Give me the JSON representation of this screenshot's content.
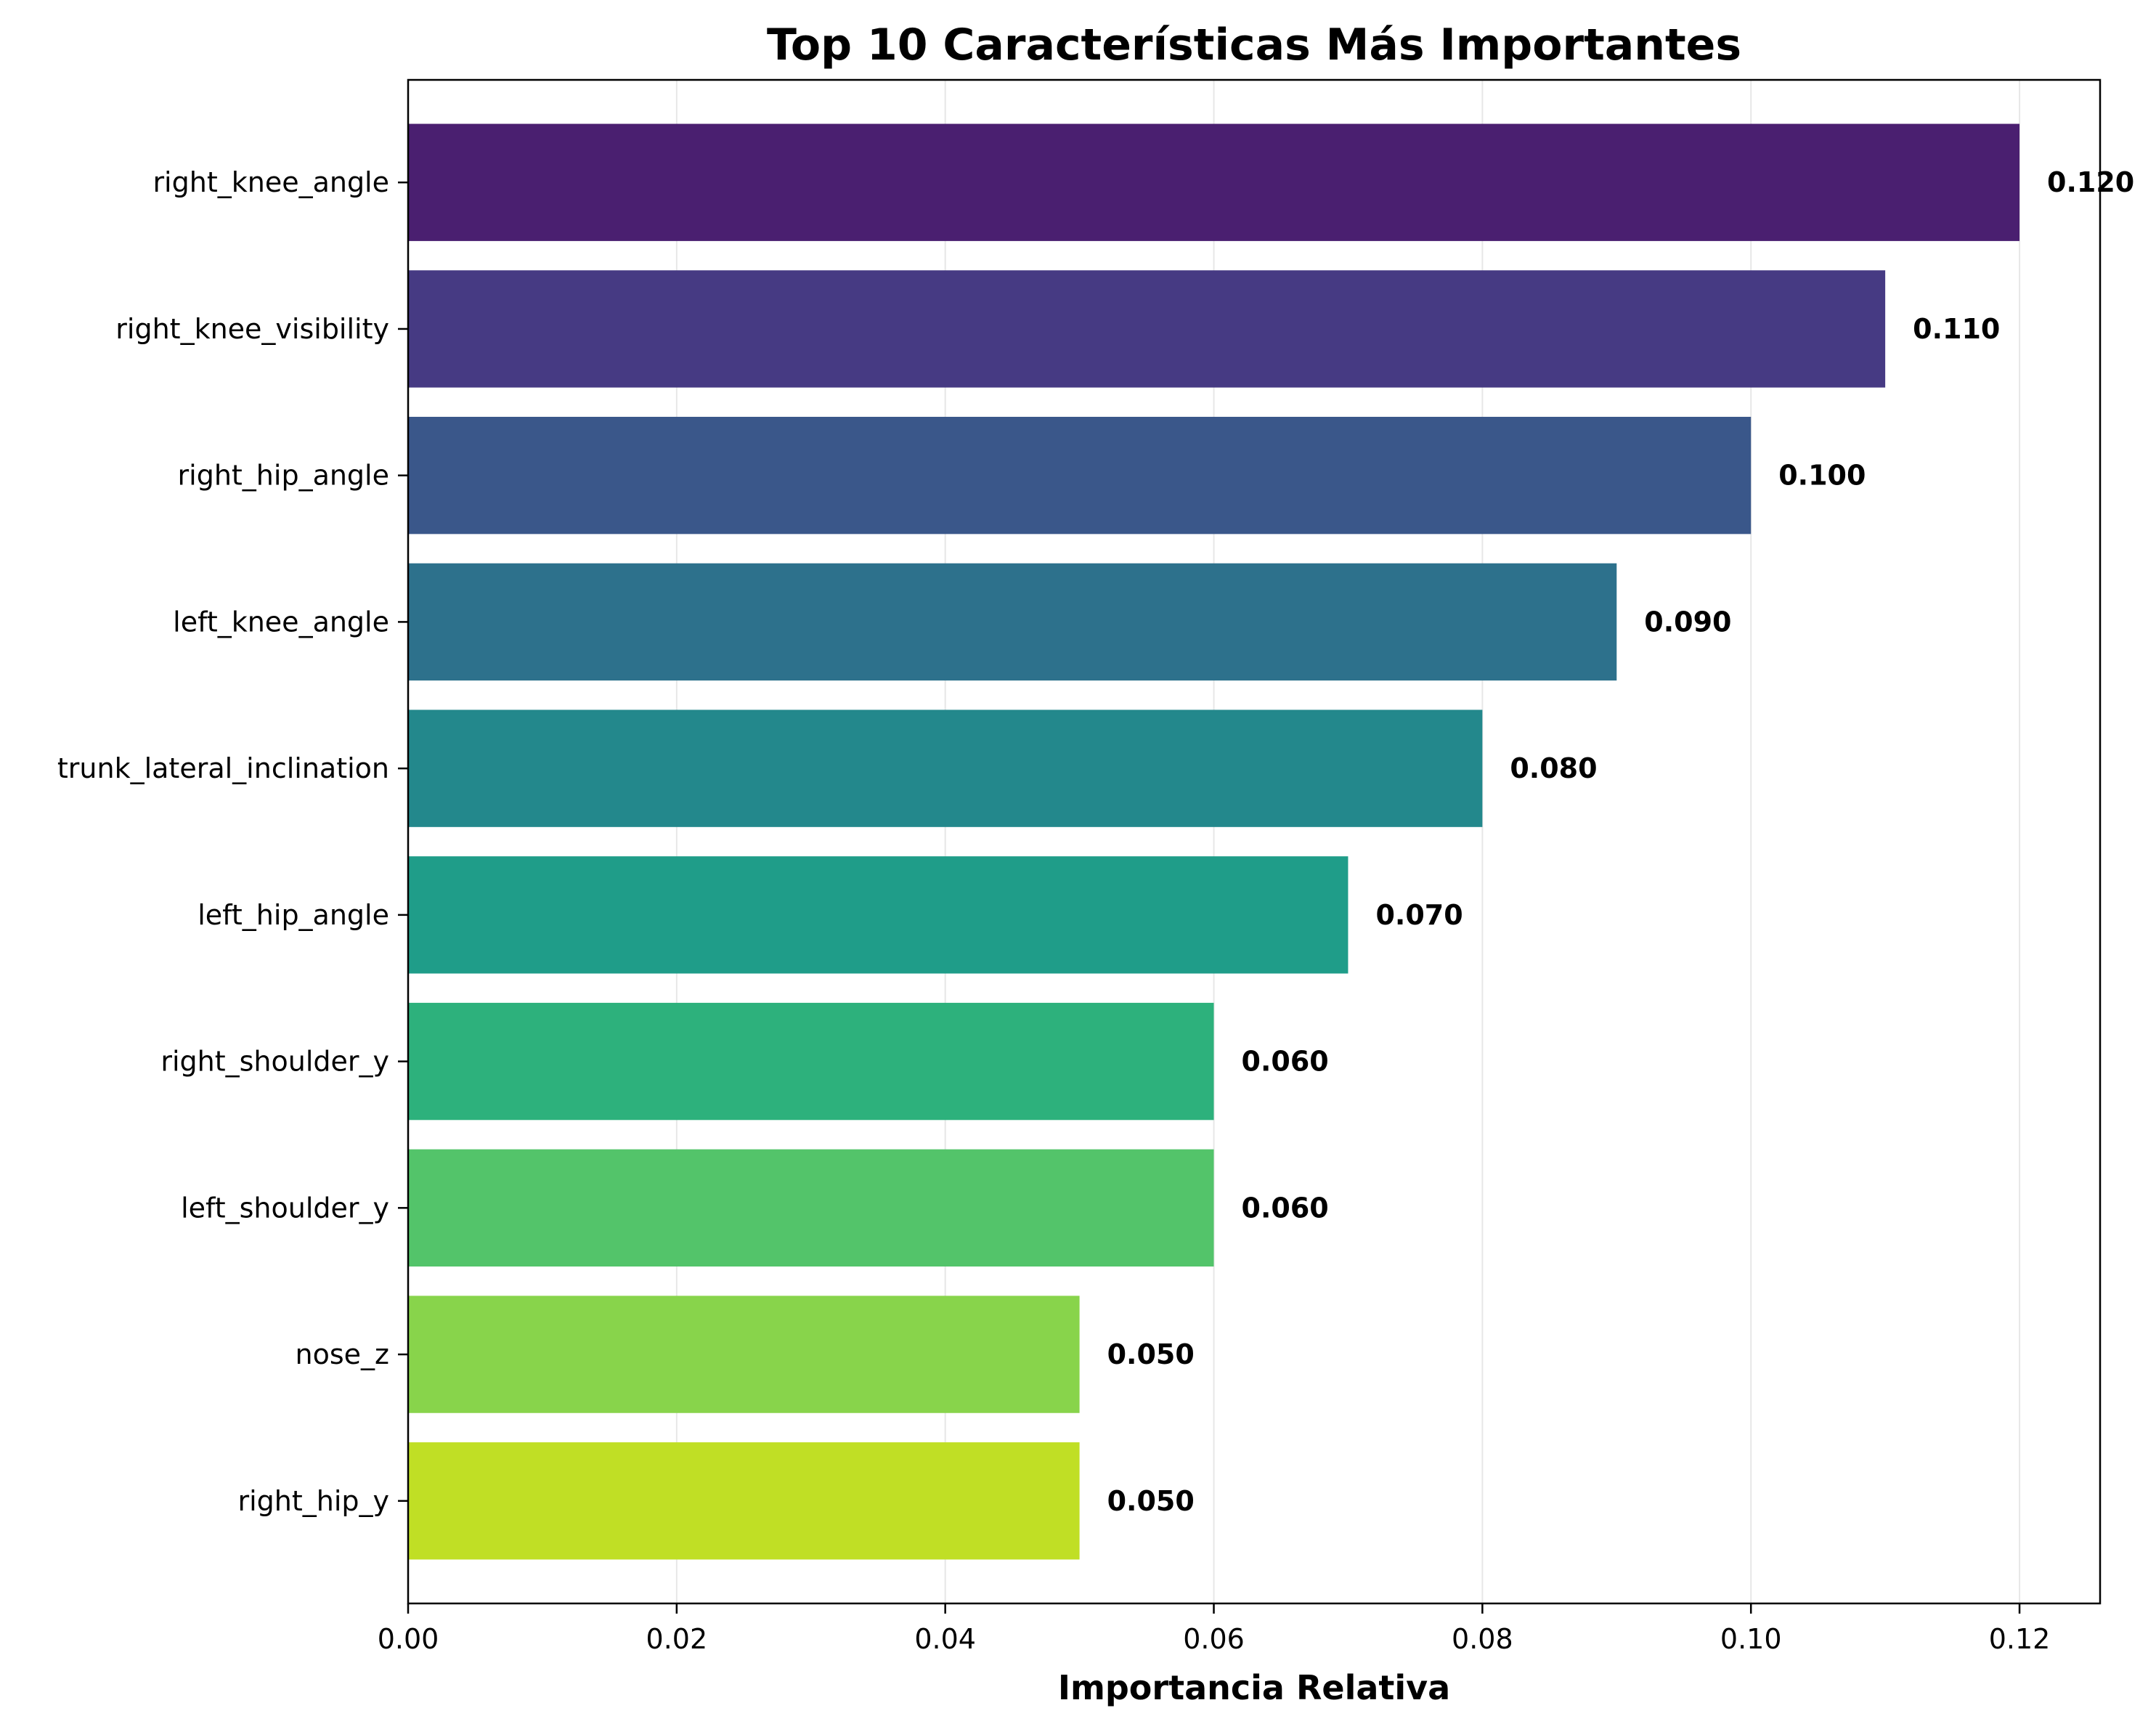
{
  "chart_data": {
    "type": "bar",
    "orientation": "horizontal",
    "title": "Top 10 Características Más Importantes",
    "xlabel": "Importancia Relativa",
    "ylabel": "",
    "xlim": [
      0,
      0.126
    ],
    "grid": true,
    "categories": [
      "right_knee_angle",
      "right_knee_visibility",
      "right_hip_angle",
      "left_knee_angle",
      "trunk_lateral_inclination",
      "left_hip_angle",
      "right_shoulder_y",
      "left_shoulder_y",
      "nose_z",
      "right_hip_y"
    ],
    "values": [
      0.12,
      0.11,
      0.1,
      0.09,
      0.08,
      0.07,
      0.06,
      0.06,
      0.05,
      0.05
    ],
    "value_labels": [
      "0.120",
      "0.110",
      "0.100",
      "0.090",
      "0.080",
      "0.070",
      "0.060",
      "0.060",
      "0.050",
      "0.050"
    ],
    "colors": [
      "#4a1f70",
      "#463a83",
      "#3a578a",
      "#2d718c",
      "#23888c",
      "#1f9d89",
      "#2db17c",
      "#53c46a",
      "#88d44b",
      "#c0df25"
    ],
    "xticks": [
      0.0,
      0.02,
      0.04,
      0.06,
      0.08,
      0.1,
      0.12
    ],
    "xtick_labels": [
      "0.00",
      "0.02",
      "0.04",
      "0.06",
      "0.08",
      "0.10",
      "0.12"
    ]
  }
}
